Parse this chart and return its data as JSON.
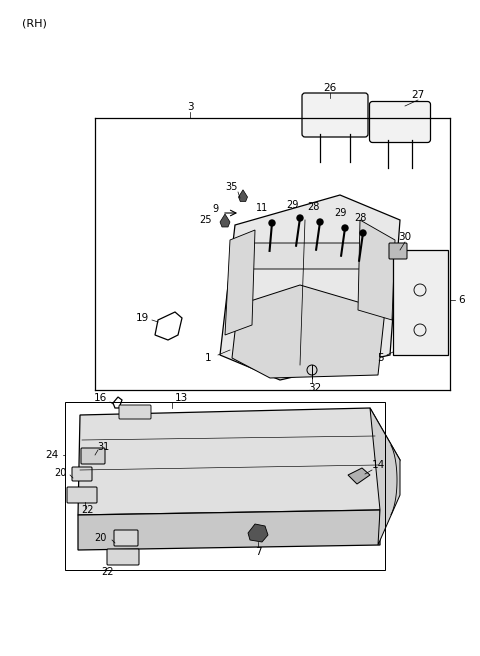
{
  "background_color": "#ffffff",
  "line_color": "#000000",
  "label_color": "#000000",
  "title_text": "(RH)",
  "fig_w": 4.8,
  "fig_h": 6.56,
  "dpi": 100
}
